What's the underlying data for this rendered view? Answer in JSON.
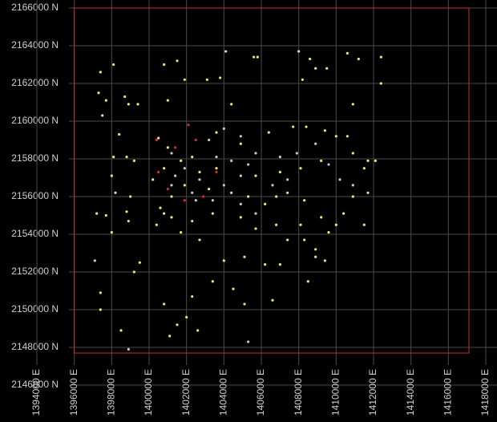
{
  "chart_data": {
    "type": "scatter",
    "xlim": [
      1394000,
      1418000
    ],
    "ylim": [
      2146000,
      2166000
    ],
    "xticks": [
      {
        "value": 1394000,
        "label": "1394000 E"
      },
      {
        "value": 1396000,
        "label": "1396000 E"
      },
      {
        "value": 1398000,
        "label": "1398000 E"
      },
      {
        "value": 1400000,
        "label": "1400000 E"
      },
      {
        "value": 1402000,
        "label": "1402000 E"
      },
      {
        "value": 1404000,
        "label": "1404000 E"
      },
      {
        "value": 1406000,
        "label": "1406000 E"
      },
      {
        "value": 1408000,
        "label": "1408000 E"
      },
      {
        "value": 1410000,
        "label": "1410000 E"
      },
      {
        "value": 1412000,
        "label": "1412000 E"
      },
      {
        "value": 1414000,
        "label": "1414000 E"
      },
      {
        "value": 1416000,
        "label": "1416000 E"
      },
      {
        "value": 1418000,
        "label": "1418000 E"
      }
    ],
    "yticks": [
      {
        "value": 2146000,
        "label": "2146000 N"
      },
      {
        "value": 2148000,
        "label": "2148000 N"
      },
      {
        "value": 2150000,
        "label": "2150000 N"
      },
      {
        "value": 2152000,
        "label": "2152000 N"
      },
      {
        "value": 2154000,
        "label": "2154000 N"
      },
      {
        "value": 2156000,
        "label": "2156000 N"
      },
      {
        "value": 2158000,
        "label": "2158000 N"
      },
      {
        "value": 2160000,
        "label": "2160000 N"
      },
      {
        "value": 2162000,
        "label": "2162000 N"
      },
      {
        "value": 2164000,
        "label": "2164000 N"
      },
      {
        "value": 2166000,
        "label": "2166000 N"
      }
    ],
    "grid": true,
    "boundary": {
      "color": "#c83030",
      "x": [
        1396000,
        1417100
      ],
      "y": [
        2147700,
        2166000
      ]
    },
    "series": [
      {
        "color": "#f2e27c",
        "x": [
          1397400,
          1398100,
          1397300,
          1397700,
          1398700,
          1398900,
          1399400,
          1397500,
          1398400,
          1398100,
          1398800,
          1399200,
          1398000,
          1398200,
          1399000,
          1397200,
          1397700,
          1398800,
          1398900,
          1398000,
          1400400,
          1400800,
          1399500,
          1399200,
          1397400,
          1397400,
          1398500,
          1400800,
          1401100,
          1401500,
          1402600,
          1402000,
          1403400,
          1402300,
          1404500,
          1405100,
          1406600,
          1400800,
          1401500,
          1401900,
          1403100,
          1403800,
          1404100,
          1405600,
          1405800,
          1408000,
          1408600,
          1408900,
          1409500,
          1410600,
          1411200,
          1412400,
          1412400,
          1408200,
          1410900,
          1404400,
          1401000,
          1400500,
          1401000,
          1403600,
          1404900,
          1406400,
          1407700,
          1408400,
          1409400,
          1410000,
          1410600,
          1410900,
          1411700,
          1412100,
          1411500,
          1409200,
          1408100,
          1407000,
          1405700,
          1404400,
          1403200,
          1401900,
          1401200,
          1400200,
          1400600,
          1401200,
          1402300,
          1403400,
          1404900,
          1405700,
          1406800,
          1407400,
          1408300,
          1408900,
          1409600,
          1410400,
          1410900,
          1411700,
          1411500,
          1410000,
          1408100,
          1407000,
          1406200,
          1405100,
          1404000,
          1402700,
          1401700,
          1408900,
          1408500,
          1409400,
          1409200,
          1408300,
          1407400,
          1406800,
          1406200,
          1405300,
          1403600,
          1402700,
          1402300,
          1401700,
          1400800
        ],
        "y": [
          2162600,
          2163000,
          2161500,
          2161100,
          2161300,
          2160900,
          2160900,
          2160300,
          2159300,
          2158100,
          2158100,
          2157900,
          2157100,
          2156200,
          2156000,
          2155100,
          2155000,
          2155200,
          2154700,
          2154100,
          2154500,
          2155100,
          2152500,
          2152000,
          2150900,
          2150000,
          2148900,
          2150300,
          2148600,
          2149200,
          2148900,
          2149600,
          2151500,
          2150700,
          2151100,
          2150300,
          2150500,
          2163000,
          2163200,
          2162200,
          2162200,
          2162300,
          2163700,
          2163400,
          2163400,
          2163700,
          2163300,
          2162800,
          2162800,
          2163600,
          2163300,
          2163400,
          2162000,
          2162200,
          2160900,
          2160900,
          2161100,
          2159100,
          2158600,
          2159400,
          2158800,
          2159400,
          2159700,
          2159700,
          2159500,
          2159200,
          2159200,
          2158300,
          2157900,
          2157900,
          2157500,
          2157900,
          2157500,
          2157300,
          2157100,
          2156200,
          2156400,
          2156600,
          2156000,
          2156900,
          2155400,
          2154900,
          2154700,
          2155100,
          2154900,
          2154300,
          2154500,
          2153700,
          2153700,
          2153200,
          2154100,
          2155100,
          2156000,
          2156200,
          2154500,
          2154500,
          2154500,
          2152400,
          2152400,
          2152800,
          2152600,
          2153700,
          2154100,
          2152800,
          2151500,
          2152600,
          2154900,
          2155800,
          2156200,
          2156000,
          2155600,
          2156000,
          2157500,
          2157300,
          2158100,
          2157900,
          2157500
        ]
      },
      {
        "color": "#c8c8c8",
        "x": [
          1403200,
          1404000,
          1404900,
          1403600,
          1404400,
          1405300,
          1405700,
          1402700,
          1404000,
          1404900,
          1406600,
          1407400,
          1401900,
          1401200,
          1401400,
          1402500,
          1403400,
          1404900,
          1405700,
          1409600,
          1410200,
          1410900,
          1407000,
          1398900,
          1397100,
          1405300,
          1407900,
          1408900,
          1401200,
          1402300
        ],
        "y": [
          2159000,
          2159600,
          2159200,
          2158100,
          2157900,
          2157700,
          2158300,
          2156900,
          2156600,
          2157100,
          2156600,
          2156900,
          2157500,
          2158300,
          2157100,
          2155800,
          2155800,
          2155600,
          2155100,
          2157700,
          2156900,
          2156600,
          2158100,
          2147900,
          2152600,
          2148300,
          2158300,
          2158800,
          2156600,
          2156200
        ]
      },
      {
        "color": "#d03030",
        "x": [
          1400400,
          1402100,
          1401400,
          1402500,
          1401000,
          1402900,
          1401900,
          1403600,
          1400500
        ],
        "y": [
          2159000,
          2159800,
          2158600,
          2159000,
          2156400,
          2156000,
          2155800,
          2157300,
          2157300
        ]
      }
    ]
  }
}
